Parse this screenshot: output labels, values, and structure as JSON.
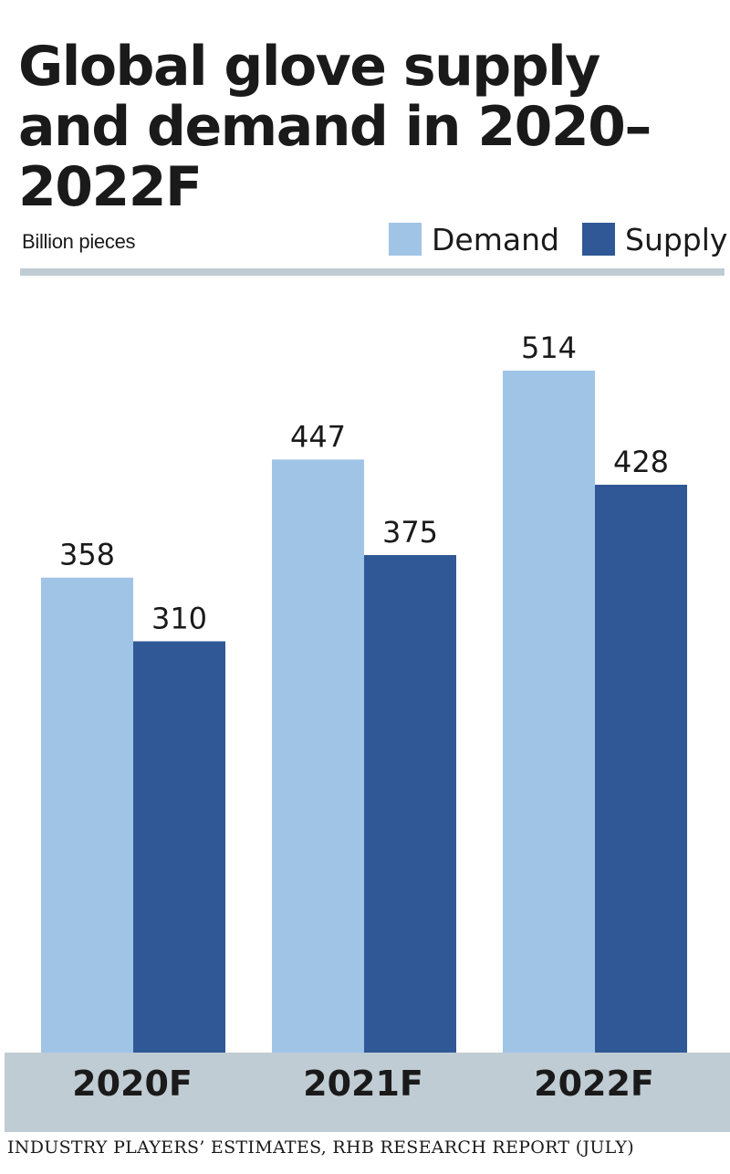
{
  "title": "Global glove supply and demand in 2020–2022F",
  "unit_label": "Billion pieces",
  "source": "INDUSTRY PLAYERS’ ESTIMATES, RHB RESEARCH REPORT (JULY)",
  "colors": {
    "demand": "#a0c4e5",
    "supply": "#305896",
    "axis_band": "#c0ccd3",
    "rule": "#c0ccd3"
  },
  "chart_data": {
    "type": "bar",
    "title": "Global glove supply and demand in 2020–2022F",
    "ylabel": "Billion pieces",
    "categories": [
      "2020F",
      "2021F",
      "2022F"
    ],
    "series": [
      {
        "name": "Demand",
        "values": [
          358,
          447,
          514
        ]
      },
      {
        "name": "Supply",
        "values": [
          310,
          375,
          428
        ]
      }
    ],
    "ylim": [
      0,
      600
    ],
    "grid": false,
    "legend_position": "top-right"
  }
}
